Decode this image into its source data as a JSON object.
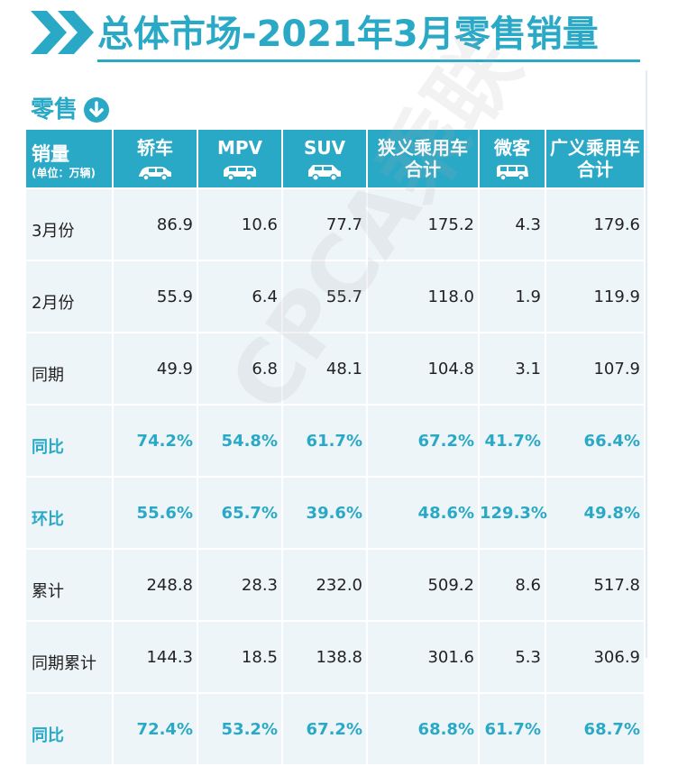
{
  "header": {
    "title": "总体市场-2021年3月零售销量",
    "colors": {
      "accent": "#2aa9c7",
      "row_bg": "#eef5f8"
    }
  },
  "section": {
    "label": "零售",
    "icon": "down-arrow-circle-icon"
  },
  "watermark": "CPCA乘联",
  "table": {
    "corner": {
      "title": "销量",
      "unit": "(单位：万辆)"
    },
    "columns": [
      {
        "label": "轿车",
        "icon": "sedan-icon"
      },
      {
        "label": "MPV",
        "icon": "mpv-icon"
      },
      {
        "label": "SUV",
        "icon": "suv-icon"
      },
      {
        "label": "狭义乘用车合计",
        "line1": "狭义乘用车",
        "line2": "合计"
      },
      {
        "label": "微客",
        "icon": "minivan-icon"
      },
      {
        "label": "广义乘用车合计",
        "line1": "广义乘用车",
        "line2": "合计"
      }
    ],
    "rows": [
      {
        "label": "3月份",
        "values": [
          "86.9",
          "10.6",
          "77.7",
          "175.2",
          "4.3",
          "179.6"
        ],
        "highlight": false
      },
      {
        "label": "2月份",
        "values": [
          "55.9",
          "6.4",
          "55.7",
          "118.0",
          "1.9",
          "119.9"
        ],
        "highlight": false
      },
      {
        "label": "同期",
        "values": [
          "49.9",
          "6.8",
          "48.1",
          "104.8",
          "3.1",
          "107.9"
        ],
        "highlight": false
      },
      {
        "label": "同比",
        "values": [
          "74.2%",
          "54.8%",
          "61.7%",
          "67.2%",
          "41.7%",
          "66.4%"
        ],
        "highlight": true
      },
      {
        "label": "环比",
        "values": [
          "55.6%",
          "65.7%",
          "39.6%",
          "48.6%",
          "129.3%",
          "49.8%"
        ],
        "highlight": true
      },
      {
        "label": "累计",
        "values": [
          "248.8",
          "28.3",
          "232.0",
          "509.2",
          "8.6",
          "517.8"
        ],
        "highlight": false
      },
      {
        "label": "同期累计",
        "values": [
          "144.3",
          "18.5",
          "138.8",
          "301.6",
          "5.3",
          "306.9"
        ],
        "highlight": false
      },
      {
        "label": "同比",
        "values": [
          "72.4%",
          "53.2%",
          "67.2%",
          "68.8%",
          "61.7%",
          "68.7%"
        ],
        "highlight": true
      }
    ]
  }
}
